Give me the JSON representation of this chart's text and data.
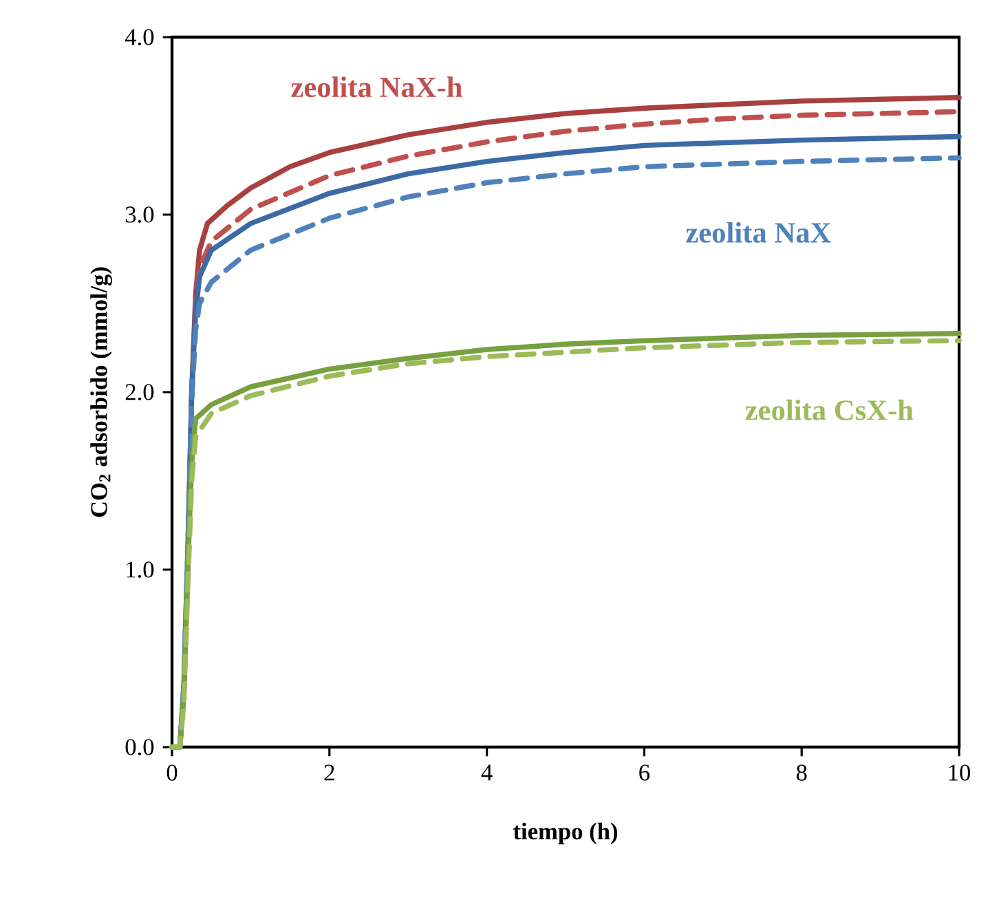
{
  "chart_data": {
    "type": "line",
    "xlabel": "tiempo (h)",
    "ylabel": "CO$_{2}$ adsorbido (mmol/g)",
    "xlim": [
      0,
      10
    ],
    "ylim": [
      0,
      4
    ],
    "xticks": [
      0,
      2,
      4,
      6,
      8,
      10
    ],
    "yticks": [
      {
        "value": 0,
        "label": "0.0"
      },
      {
        "value": 1,
        "label": "1.0"
      },
      {
        "value": 2,
        "label": "2.0"
      },
      {
        "value": 3,
        "label": "3.0"
      },
      {
        "value": 4,
        "label": "4.0"
      }
    ],
    "marker": "none",
    "series": [
      {
        "color": "#a84040",
        "line_style": "solid",
        "x": [
          0,
          0.1,
          0.15,
          0.2,
          0.25,
          0.3,
          0.35,
          0.45,
          0.7,
          1,
          1.5,
          2,
          3,
          4,
          5,
          6,
          7,
          8,
          9,
          10
        ],
        "values": [
          0,
          0,
          0.3,
          1.0,
          2.0,
          2.55,
          2.8,
          2.95,
          3.05,
          3.15,
          3.27,
          3.35,
          3.45,
          3.52,
          3.57,
          3.6,
          3.62,
          3.64,
          3.65,
          3.66
        ]
      },
      {
        "name": "zeolita NaX-h",
        "color": "#c0504d",
        "line_style": "dashed",
        "x": [
          0,
          0.1,
          0.15,
          0.2,
          0.25,
          0.3,
          0.35,
          0.5,
          1,
          2,
          3,
          4,
          5,
          6,
          7,
          8,
          10
        ],
        "values": [
          0,
          0,
          0.3,
          1.0,
          2.0,
          2.5,
          2.7,
          2.85,
          3.03,
          3.22,
          3.33,
          3.41,
          3.47,
          3.51,
          3.54,
          3.56,
          3.58
        ]
      },
      {
        "color": "#3c6aa6",
        "line_style": "solid",
        "x": [
          0,
          0.1,
          0.15,
          0.2,
          0.25,
          0.3,
          0.35,
          0.5,
          1,
          2,
          3,
          4,
          5,
          6,
          8,
          10
        ],
        "values": [
          0,
          0,
          0.35,
          1.1,
          2.0,
          2.45,
          2.65,
          2.8,
          2.95,
          3.12,
          3.23,
          3.3,
          3.35,
          3.39,
          3.42,
          3.44
        ]
      },
      {
        "name": "zeolita NaX",
        "color": "#4f81bd",
        "line_style": "dashed",
        "x": [
          0,
          0.1,
          0.15,
          0.2,
          0.25,
          0.3,
          0.35,
          0.5,
          1,
          2,
          3,
          4,
          5,
          6,
          8,
          10
        ],
        "values": [
          0,
          0,
          0.35,
          1.1,
          1.95,
          2.35,
          2.5,
          2.62,
          2.8,
          2.98,
          3.1,
          3.18,
          3.23,
          3.27,
          3.3,
          3.32
        ]
      },
      {
        "color": "#77a040",
        "line_style": "solid",
        "x": [
          0,
          0.1,
          0.15,
          0.2,
          0.25,
          0.3,
          0.5,
          1,
          2,
          3,
          4,
          5,
          6,
          8,
          10
        ],
        "values": [
          0,
          0,
          0.3,
          1.0,
          1.6,
          1.85,
          1.93,
          2.03,
          2.13,
          2.19,
          2.24,
          2.27,
          2.29,
          2.32,
          2.33
        ]
      },
      {
        "name": "zeolita CsX-h",
        "color": "#9bbb59",
        "line_style": "dashed",
        "x": [
          0,
          0.1,
          0.15,
          0.2,
          0.25,
          0.3,
          0.5,
          1,
          2,
          3,
          4,
          6,
          8,
          10
        ],
        "values": [
          0,
          0,
          0.25,
          0.9,
          1.5,
          1.75,
          1.88,
          1.98,
          2.09,
          2.16,
          2.2,
          2.25,
          2.28,
          2.29
        ]
      }
    ]
  }
}
